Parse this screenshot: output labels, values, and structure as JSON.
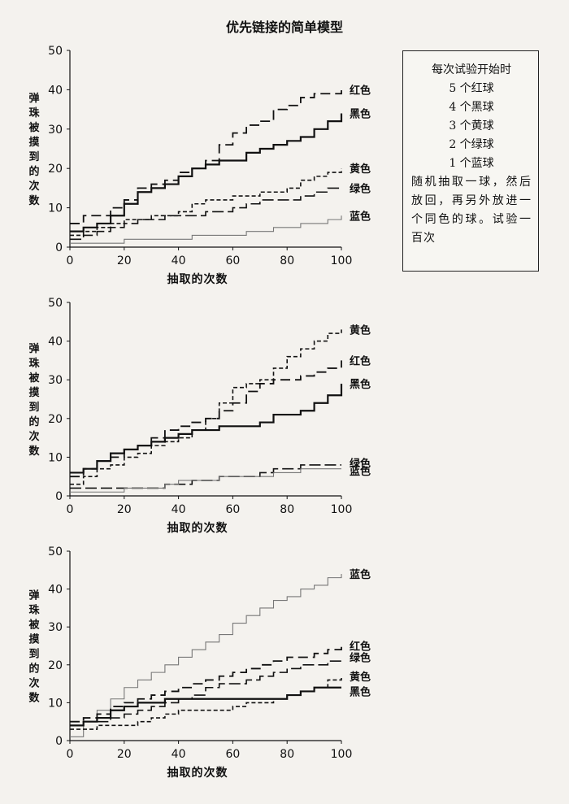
{
  "page_title": "优先链接的简单模型",
  "infobox": {
    "heading": "每次试验开始时",
    "items": [
      "5 个红球",
      "4 个黑球",
      "3 个黄球",
      "2 个绿球",
      "1 个蓝球"
    ],
    "body": "随机抽取一球，然后放回，再另外放进一个同色的球。试验一百次"
  },
  "styles": {
    "红色": {
      "dash": "12,6",
      "width": 1.8,
      "color": "#111111"
    },
    "黑色": {
      "dash": "",
      "width": 2.2,
      "color": "#111111"
    },
    "黄色": {
      "dash": "5,3",
      "width": 1.6,
      "color": "#111111"
    },
    "绿色": {
      "dash": "14,5",
      "width": 1.6,
      "color": "#111111"
    },
    "蓝色": {
      "dash": "",
      "width": 1.1,
      "color": "#777777"
    }
  },
  "chart_data": [
    {
      "type": "line",
      "xlabel": "抽取的次数",
      "ylabel": "弹珠被摸到的次数",
      "xlim": [
        0,
        100
      ],
      "ylim": [
        0,
        50
      ],
      "x_ticks": [
        0,
        20,
        40,
        60,
        80,
        100
      ],
      "y_ticks": [
        0,
        10,
        20,
        30,
        40,
        50
      ],
      "series": [
        {
          "name": "红色",
          "label_y": 40,
          "x": [
            0,
            5,
            10,
            15,
            20,
            25,
            30,
            35,
            40,
            45,
            50,
            55,
            60,
            65,
            70,
            75,
            80,
            85,
            90,
            95,
            100
          ],
          "y": [
            6,
            8,
            8,
            10,
            12,
            15,
            16,
            17,
            19,
            20,
            22,
            26,
            29,
            31,
            32,
            35,
            36,
            38,
            39,
            39,
            40
          ]
        },
        {
          "name": "黑色",
          "label_y": 34,
          "x": [
            0,
            5,
            10,
            15,
            20,
            25,
            30,
            35,
            40,
            45,
            50,
            55,
            60,
            65,
            70,
            75,
            80,
            85,
            90,
            95,
            100
          ],
          "y": [
            4,
            5,
            6,
            8,
            11,
            14,
            15,
            16,
            18,
            20,
            21,
            22,
            22,
            24,
            25,
            26,
            27,
            28,
            30,
            32,
            34
          ]
        },
        {
          "name": "黄色",
          "label_y": 20,
          "x": [
            0,
            5,
            10,
            15,
            20,
            25,
            30,
            35,
            40,
            45,
            50,
            55,
            60,
            65,
            70,
            75,
            80,
            85,
            90,
            95,
            100
          ],
          "y": [
            3,
            4,
            5,
            6,
            7,
            7,
            8,
            8,
            9,
            11,
            12,
            12,
            13,
            13,
            14,
            14,
            15,
            17,
            18,
            19,
            20
          ]
        },
        {
          "name": "绿色",
          "label_y": 15,
          "x": [
            0,
            5,
            10,
            15,
            20,
            25,
            30,
            35,
            40,
            45,
            50,
            55,
            60,
            65,
            70,
            75,
            80,
            85,
            90,
            95,
            100
          ],
          "y": [
            2,
            3,
            4,
            5,
            6,
            7,
            7,
            8,
            8,
            8,
            9,
            9,
            10,
            11,
            12,
            12,
            12,
            13,
            14,
            15,
            15
          ]
        },
        {
          "name": "蓝色",
          "label_y": 8,
          "x": [
            0,
            5,
            10,
            15,
            20,
            25,
            30,
            35,
            40,
            45,
            50,
            55,
            60,
            65,
            70,
            75,
            80,
            85,
            90,
            95,
            100
          ],
          "y": [
            1,
            1,
            1,
            1,
            2,
            2,
            2,
            2,
            2,
            3,
            3,
            3,
            3,
            4,
            4,
            5,
            5,
            6,
            6,
            7,
            8
          ]
        }
      ]
    },
    {
      "type": "line",
      "xlabel": "抽取的次数",
      "ylabel": "弹珠被摸到的次数",
      "xlim": [
        0,
        100
      ],
      "ylim": [
        0,
        50
      ],
      "x_ticks": [
        0,
        20,
        40,
        60,
        80,
        100
      ],
      "y_ticks": [
        0,
        10,
        20,
        30,
        40,
        50
      ],
      "series": [
        {
          "name": "黄色",
          "label_y": 43,
          "x": [
            0,
            5,
            10,
            15,
            20,
            25,
            30,
            35,
            40,
            45,
            50,
            55,
            60,
            65,
            70,
            75,
            80,
            85,
            90,
            95,
            100
          ],
          "y": [
            3,
            5,
            7,
            8,
            10,
            11,
            13,
            14,
            15,
            17,
            20,
            24,
            28,
            29,
            30,
            33,
            36,
            38,
            40,
            42,
            43
          ]
        },
        {
          "name": "红色",
          "label_y": 35,
          "x": [
            0,
            5,
            10,
            15,
            20,
            25,
            30,
            35,
            40,
            45,
            50,
            55,
            60,
            65,
            70,
            75,
            80,
            85,
            90,
            95,
            100
          ],
          "y": [
            5,
            7,
            9,
            10,
            12,
            13,
            15,
            17,
            18,
            19,
            20,
            22,
            24,
            27,
            29,
            30,
            30,
            31,
            32,
            33,
            35
          ]
        },
        {
          "name": "黑色",
          "label_y": 29,
          "x": [
            0,
            5,
            10,
            15,
            20,
            25,
            30,
            35,
            40,
            45,
            50,
            55,
            60,
            65,
            70,
            75,
            80,
            85,
            90,
            95,
            100
          ],
          "y": [
            6,
            7,
            9,
            11,
            12,
            13,
            14,
            15,
            16,
            17,
            17,
            18,
            18,
            18,
            19,
            21,
            21,
            22,
            24,
            26,
            29
          ]
        },
        {
          "name": "绿色",
          "label_y": 8.5,
          "x": [
            0,
            5,
            10,
            15,
            20,
            25,
            30,
            35,
            40,
            45,
            50,
            55,
            60,
            65,
            70,
            75,
            80,
            85,
            90,
            95,
            100
          ],
          "y": [
            2,
            2,
            2,
            2,
            2,
            2,
            2,
            3,
            3,
            4,
            4,
            5,
            5,
            5,
            6,
            7,
            7,
            8,
            8,
            8,
            8
          ]
        },
        {
          "name": "蓝色",
          "label_y": 6.5,
          "x": [
            0,
            5,
            10,
            15,
            20,
            25,
            30,
            35,
            40,
            45,
            50,
            55,
            60,
            65,
            70,
            75,
            80,
            85,
            90,
            95,
            100
          ],
          "y": [
            1,
            1,
            1,
            1,
            2,
            2,
            2,
            3,
            4,
            4,
            4,
            5,
            5,
            5,
            5,
            6,
            6,
            7,
            7,
            7,
            7
          ]
        }
      ]
    },
    {
      "type": "line",
      "xlabel": "抽取的次数",
      "ylabel": "弹珠被摸到的次数",
      "xlim": [
        0,
        100
      ],
      "ylim": [
        0,
        50
      ],
      "x_ticks": [
        0,
        20,
        40,
        60,
        80,
        100
      ],
      "y_ticks": [
        0,
        10,
        20,
        30,
        40,
        50
      ],
      "series": [
        {
          "name": "蓝色",
          "label_y": 44,
          "x": [
            0,
            5,
            10,
            15,
            20,
            25,
            30,
            35,
            40,
            45,
            50,
            55,
            60,
            65,
            70,
            75,
            80,
            85,
            90,
            95,
            100
          ],
          "y": [
            1,
            5,
            8,
            11,
            14,
            16,
            18,
            20,
            22,
            24,
            26,
            28,
            31,
            33,
            35,
            37,
            38,
            40,
            41,
            43,
            44
          ]
        },
        {
          "name": "红色",
          "label_y": 25,
          "x": [
            0,
            5,
            10,
            15,
            20,
            25,
            30,
            35,
            40,
            45,
            50,
            55,
            60,
            65,
            70,
            75,
            80,
            85,
            90,
            95,
            100
          ],
          "y": [
            5,
            6,
            7,
            9,
            10,
            11,
            12,
            13,
            14,
            15,
            16,
            17,
            18,
            19,
            20,
            21,
            22,
            22,
            23,
            24,
            25
          ]
        },
        {
          "name": "绿色",
          "label_y": 22,
          "x": [
            0,
            5,
            10,
            15,
            20,
            25,
            30,
            35,
            40,
            45,
            50,
            55,
            60,
            65,
            70,
            75,
            80,
            85,
            90,
            95,
            100
          ],
          "y": [
            4,
            5,
            5,
            6,
            7,
            8,
            9,
            10,
            11,
            12,
            14,
            15,
            15,
            16,
            17,
            18,
            19,
            20,
            20,
            21,
            22
          ]
        },
        {
          "name": "黄色",
          "label_y": 17,
          "x": [
            0,
            5,
            10,
            15,
            20,
            25,
            30,
            35,
            40,
            45,
            50,
            55,
            60,
            65,
            70,
            75,
            80,
            85,
            90,
            95,
            100
          ],
          "y": [
            3,
            3,
            4,
            4,
            4,
            5,
            6,
            7,
            8,
            8,
            8,
            8,
            9,
            10,
            10,
            11,
            12,
            13,
            14,
            16,
            17
          ]
        },
        {
          "name": "黑色",
          "label_y": 13,
          "x": [
            0,
            5,
            10,
            15,
            20,
            25,
            30,
            35,
            40,
            45,
            50,
            55,
            60,
            65,
            70,
            75,
            80,
            85,
            90,
            95,
            100
          ],
          "y": [
            4,
            5,
            6,
            8,
            9,
            10,
            10,
            11,
            11,
            11,
            11,
            11,
            11,
            11,
            11,
            11,
            12,
            13,
            14,
            14,
            14
          ]
        }
      ]
    }
  ]
}
